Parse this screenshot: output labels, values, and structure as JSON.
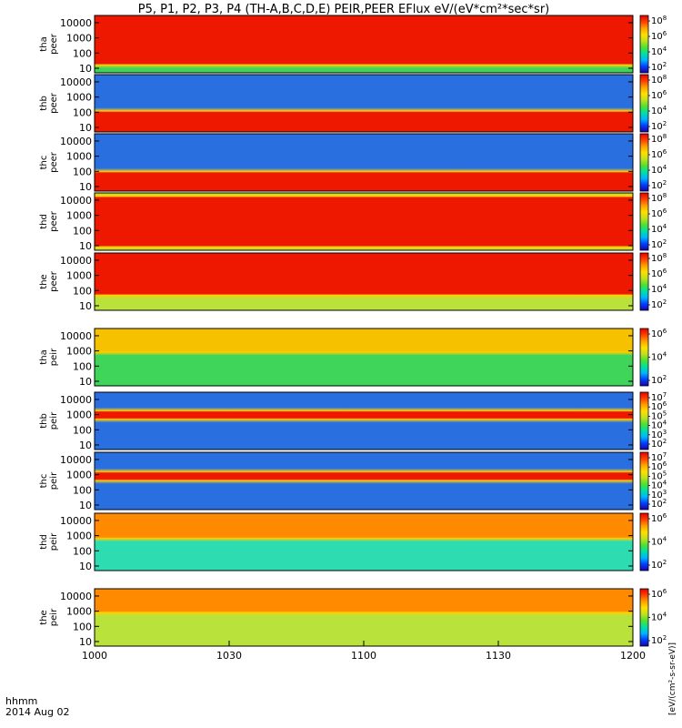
{
  "chart_data": {
    "type": "heatmap",
    "title": "P5, P1, P2, P3, P4 (TH-A,B,C,D,E) PEIR,PEER EFlux eV/(eV*cm²*sec*sr)",
    "x_tick_labels": [
      "1000",
      "1030",
      "1100",
      "1130",
      "1200"
    ],
    "x_tick_times_min": [
      0,
      30,
      60,
      90,
      120
    ],
    "x_range_min": [
      0,
      120
    ],
    "time_label_lines": [
      "hhmm",
      "2014 Aug 02"
    ],
    "colorbar_unit_label": "[eV/(cm²-s-sr-eV)]",
    "y_scale": "log",
    "y_range_eV": [
      5,
      30000
    ],
    "y_tick_labels": [
      "10",
      "100",
      "1000",
      "10000"
    ],
    "y_tick_values": [
      10,
      100,
      1000,
      10000
    ],
    "panels": [
      {
        "probe": "tha",
        "species": "peer",
        "ylabel_lines": [
          "tha",
          "peer"
        ],
        "cb_exponents": [
          "2",
          "4",
          "6",
          "8"
        ],
        "peak_band_eV": [
          20,
          30000
        ],
        "dominant": "red",
        "background": "green"
      },
      {
        "probe": "thb",
        "species": "peer",
        "ylabel_lines": [
          "thb",
          "peer"
        ],
        "cb_exponents": [
          "2",
          "4",
          "6",
          "8"
        ],
        "peak_band_eV": [
          5,
          100
        ],
        "dominant": "red",
        "background": "blue-noise"
      },
      {
        "probe": "thc",
        "species": "peer",
        "ylabel_lines": [
          "thc",
          "peer"
        ],
        "cb_exponents": [
          "2",
          "4",
          "6",
          "8"
        ],
        "peak_band_eV": [
          5,
          80
        ],
        "dominant": "red",
        "background": "blue-noise"
      },
      {
        "probe": "thd",
        "species": "peer",
        "ylabel_lines": [
          "thd",
          "peer"
        ],
        "cb_exponents": [
          "2",
          "4",
          "6",
          "8"
        ],
        "peak_band_eV": [
          10,
          15000
        ],
        "dominant": "red",
        "background": "yellow-green"
      },
      {
        "probe": "the",
        "species": "peer",
        "ylabel_lines": [
          "the",
          "peer"
        ],
        "cb_exponents": [
          "2",
          "4",
          "6",
          "8"
        ],
        "peak_band_eV": [
          60,
          30000
        ],
        "dominant": "red",
        "background": "yellow-green"
      },
      {
        "probe": "tha",
        "species": "peir",
        "ylabel_lines": [
          "tha",
          "peir"
        ],
        "cb_exponents": [
          "2",
          "4",
          "6"
        ],
        "peak_band_eV": [
          1000,
          30000
        ],
        "dominant": "yellow-orange",
        "background": "green"
      },
      {
        "probe": "thb",
        "species": "peir",
        "ylabel_lines": [
          "thb",
          "peir"
        ],
        "cb_exponents": [
          "2",
          "3",
          "4",
          "5",
          "6",
          "7"
        ],
        "peak_band_eV": [
          600,
          1500
        ],
        "dominant": "red",
        "background": "blue-noise"
      },
      {
        "probe": "thc",
        "species": "peir",
        "ylabel_lines": [
          "thc",
          "peir"
        ],
        "cb_exponents": [
          "2",
          "3",
          "4",
          "5",
          "6",
          "7"
        ],
        "peak_band_eV": [
          500,
          1300
        ],
        "dominant": "red",
        "background": "blue-noise"
      },
      {
        "probe": "thd",
        "species": "peir",
        "ylabel_lines": [
          "thd",
          "peir"
        ],
        "cb_exponents": [
          "2",
          "4",
          "6"
        ],
        "peak_band_eV": [
          800,
          30000
        ],
        "dominant": "orange",
        "background": "cyan-green"
      },
      {
        "probe": "the",
        "species": "peir",
        "ylabel_lines": [
          "the",
          "peir"
        ],
        "cb_exponents": [
          "2",
          "4",
          "6"
        ],
        "peak_band_eV": [
          1000,
          30000
        ],
        "dominant": "orange",
        "background": "yellow-green"
      }
    ],
    "colormap": [
      "#1c00a8",
      "#0040ff",
      "#00b4ff",
      "#00e0a0",
      "#50e030",
      "#c0e020",
      "#ffe000",
      "#ffa000",
      "#ff4000",
      "#e80000"
    ]
  }
}
